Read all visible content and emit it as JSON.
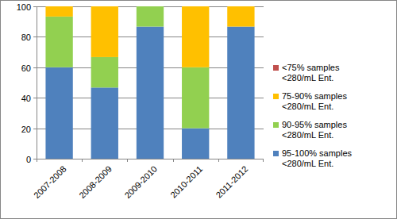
{
  "chart_data": {
    "type": "bar",
    "stacked": true,
    "grid": true,
    "legend": "right",
    "categories": [
      "2007-2008",
      "2008-2009",
      "2009-2010",
      "2010-2011",
      "2011-2012"
    ],
    "series": [
      {
        "name": "95-100% samples <280/mL Ent.",
        "color": "#4f81bd",
        "values": [
          60,
          46.7,
          86.7,
          20,
          86.7
        ]
      },
      {
        "name": "90-95% samples <280/mL Ent.",
        "color": "#92d050",
        "values": [
          33.3,
          20,
          13.3,
          40,
          0
        ]
      },
      {
        "name": "75-90% samples <280/mL Ent.",
        "color": "#ffc000",
        "values": [
          6.7,
          33.3,
          0,
          40,
          13.3
        ]
      },
      {
        "name": "<75% samples <280/mL Ent.",
        "color": "#c0504d",
        "values": [
          0,
          0,
          0,
          0,
          0
        ]
      }
    ],
    "ylim": [
      0,
      100
    ],
    "yticks": [
      0,
      20,
      40,
      60,
      80,
      100
    ]
  }
}
